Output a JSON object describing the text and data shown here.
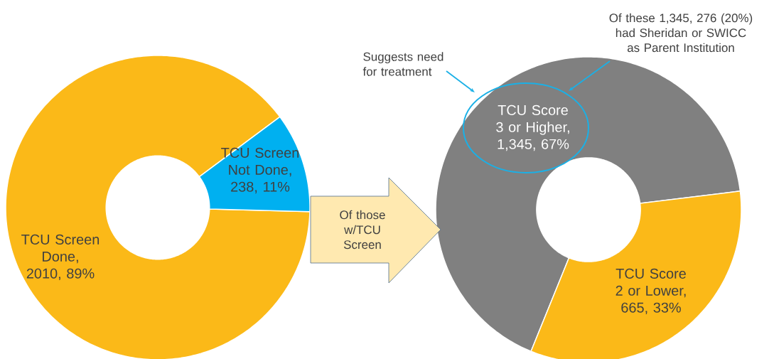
{
  "chart_data": [
    {
      "type": "donut",
      "categories": [
        "TCU Screen Done, 2010, 89%",
        "TCU Screen Not Done, 238, 11%"
      ],
      "values": [
        2010,
        238
      ],
      "colors": [
        "#fbb918",
        "#00b0f0"
      ]
    },
    {
      "type": "donut",
      "categories": [
        "TCU Score 3 or Higher, 1,345, 67%",
        "TCU Score 2 or Lower, 665, 33%"
      ],
      "values": [
        1345,
        665
      ],
      "colors": [
        "#808080",
        "#fbb918"
      ],
      "annotations": [
        "Of those w/TCU Screen",
        "Suggests need for treatment",
        "Of these 1,345, 276 (20%) had Sheridan or SWICC as Parent Institution"
      ]
    }
  ]
}
